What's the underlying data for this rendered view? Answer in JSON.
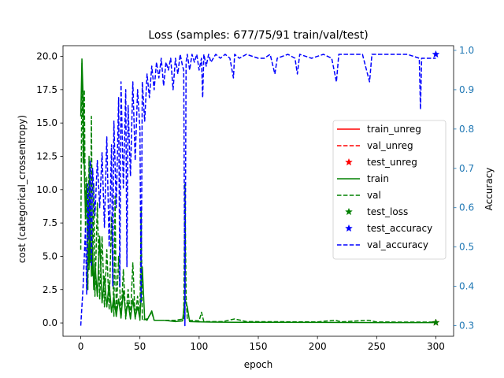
{
  "chart_data": {
    "type": "line",
    "title": "Loss (samples: 677/75/91 train/val/test)",
    "xlabel": "epoch",
    "ylabel": "cost (categorical_crossentropy)",
    "y2label": "Accuracy",
    "xlim": [
      -15,
      315
    ],
    "ylim": [
      -1.0,
      20.8
    ],
    "y2lim": [
      0.273,
      1.012
    ],
    "x_ticks": [
      0,
      50,
      100,
      150,
      200,
      250,
      300
    ],
    "y_ticks": [
      0.0,
      2.5,
      5.0,
      7.5,
      10.0,
      12.5,
      15.0,
      17.5,
      20.0
    ],
    "y2_ticks": [
      0.3,
      0.4,
      0.5,
      0.6,
      0.7,
      0.8,
      0.9,
      1.0
    ],
    "grid": false,
    "legend_position": "center-right",
    "colors": {
      "red": "#ff0000",
      "green": "#008000",
      "blue": "#0000ff",
      "right_axis": "#1f77b4"
    },
    "legend": [
      {
        "label": "train_unreg",
        "color": "#ff0000",
        "style": "solid"
      },
      {
        "label": "val_unreg",
        "color": "#ff0000",
        "style": "dashed"
      },
      {
        "label": "test_unreg",
        "color": "#ff0000",
        "style": "star"
      },
      {
        "label": "train",
        "color": "#008000",
        "style": "solid"
      },
      {
        "label": "val",
        "color": "#008000",
        "style": "dashed"
      },
      {
        "label": "test_loss",
        "color": "#008000",
        "style": "star"
      },
      {
        "label": "test_accuracy",
        "color": "#0000ff",
        "style": "star"
      },
      {
        "label": "val_accuracy",
        "color": "#0000ff",
        "style": "dashed"
      }
    ],
    "series": [
      {
        "name": "train",
        "axis": "left",
        "color": "#008000",
        "style": "solid",
        "points": [
          [
            0,
            15.5
          ],
          [
            1,
            19.8
          ],
          [
            2,
            17.0
          ],
          [
            3,
            11.5
          ],
          [
            4,
            8.0
          ],
          [
            5,
            10.5
          ],
          [
            6,
            6.5
          ],
          [
            7,
            4.0
          ],
          [
            8,
            8.5
          ],
          [
            9,
            3.5
          ],
          [
            10,
            5.5
          ],
          [
            11,
            2.5
          ],
          [
            12,
            4.5
          ],
          [
            14,
            2.0
          ],
          [
            16,
            6.5
          ],
          [
            18,
            1.5
          ],
          [
            20,
            3.5
          ],
          [
            22,
            1.2
          ],
          [
            24,
            3.0
          ],
          [
            26,
            0.8
          ],
          [
            28,
            2.0
          ],
          [
            30,
            0.5
          ],
          [
            32,
            1.8
          ],
          [
            34,
            0.4
          ],
          [
            36,
            2.4
          ],
          [
            38,
            0.6
          ],
          [
            40,
            1.5
          ],
          [
            42,
            0.3
          ],
          [
            44,
            1.8
          ],
          [
            46,
            0.4
          ],
          [
            48,
            1.2
          ],
          [
            50,
            0.3
          ],
          [
            52,
            4.2
          ],
          [
            54,
            0.3
          ],
          [
            56,
            0.2
          ],
          [
            60,
            0.9
          ],
          [
            62,
            0.2
          ],
          [
            66,
            0.2
          ],
          [
            70,
            0.2
          ],
          [
            80,
            0.1
          ],
          [
            86,
            0.15
          ],
          [
            88,
            1.8
          ],
          [
            90,
            1.2
          ],
          [
            92,
            0.1
          ],
          [
            100,
            0.08
          ],
          [
            110,
            0.06
          ],
          [
            130,
            0.05
          ],
          [
            150,
            0.05
          ],
          [
            200,
            0.04
          ],
          [
            250,
            0.03
          ],
          [
            300,
            0.03
          ]
        ]
      },
      {
        "name": "val",
        "axis": "left",
        "color": "#008000",
        "style": "dashed",
        "points": [
          [
            0,
            5.5
          ],
          [
            1,
            19.5
          ],
          [
            2,
            12.0
          ],
          [
            3,
            17.5
          ],
          [
            4,
            7.0
          ],
          [
            5,
            11.0
          ],
          [
            6,
            2.5
          ],
          [
            7,
            12.5
          ],
          [
            8,
            4.5
          ],
          [
            9,
            15.5
          ],
          [
            10,
            3.5
          ],
          [
            11,
            10.5
          ],
          [
            12,
            2.0
          ],
          [
            14,
            9.0
          ],
          [
            16,
            1.8
          ],
          [
            18,
            6.5
          ],
          [
            20,
            1.2
          ],
          [
            22,
            5.5
          ],
          [
            24,
            1.0
          ],
          [
            26,
            8.0
          ],
          [
            28,
            0.5
          ],
          [
            29,
            9.5
          ],
          [
            30,
            0.4
          ],
          [
            32,
            5.0
          ],
          [
            34,
            0.3
          ],
          [
            36,
            4.0
          ],
          [
            38,
            0.3
          ],
          [
            40,
            2.5
          ],
          [
            42,
            0.4
          ],
          [
            44,
            4.5
          ],
          [
            46,
            0.3
          ],
          [
            48,
            2.0
          ],
          [
            50,
            0.2
          ],
          [
            51,
            8.5
          ],
          [
            52,
            0.2
          ],
          [
            56,
            0.3
          ],
          [
            60,
            0.8
          ],
          [
            62,
            0.2
          ],
          [
            70,
            0.2
          ],
          [
            80,
            0.2
          ],
          [
            87,
            0.3
          ],
          [
            88,
            10.5
          ],
          [
            89,
            2.0
          ],
          [
            90,
            0.3
          ],
          [
            92,
            0.2
          ],
          [
            100,
            0.15
          ],
          [
            102,
            0.8
          ],
          [
            104,
            0.1
          ],
          [
            120,
            0.1
          ],
          [
            130,
            0.3
          ],
          [
            140,
            0.1
          ],
          [
            200,
            0.08
          ],
          [
            215,
            0.2
          ],
          [
            220,
            0.08
          ],
          [
            243,
            0.2
          ],
          [
            250,
            0.07
          ],
          [
            300,
            0.06
          ]
        ]
      },
      {
        "name": "val_accuracy",
        "axis": "right",
        "color": "#0000ff",
        "style": "dashed",
        "points": [
          [
            0,
            0.3
          ],
          [
            2,
            0.4
          ],
          [
            4,
            0.55
          ],
          [
            5,
            0.38
          ],
          [
            6,
            0.66
          ],
          [
            7,
            0.52
          ],
          [
            8,
            0.72
          ],
          [
            9,
            0.45
          ],
          [
            10,
            0.7
          ],
          [
            12,
            0.58
          ],
          [
            14,
            0.72
          ],
          [
            16,
            0.6
          ],
          [
            18,
            0.74
          ],
          [
            20,
            0.55
          ],
          [
            22,
            0.78
          ],
          [
            24,
            0.5
          ],
          [
            26,
            0.76
          ],
          [
            27,
            0.4
          ],
          [
            28,
            0.82
          ],
          [
            30,
            0.6
          ],
          [
            32,
            0.88
          ],
          [
            33,
            0.4
          ],
          [
            34,
            0.92
          ],
          [
            36,
            0.65
          ],
          [
            38,
            0.9
          ],
          [
            39,
            0.45
          ],
          [
            40,
            0.86
          ],
          [
            42,
            0.68
          ],
          [
            44,
            0.92
          ],
          [
            46,
            0.72
          ],
          [
            48,
            0.9
          ],
          [
            50,
            0.8
          ],
          [
            51,
            0.36
          ],
          [
            52,
            0.92
          ],
          [
            54,
            0.82
          ],
          [
            56,
            0.94
          ],
          [
            58,
            0.88
          ],
          [
            60,
            0.96
          ],
          [
            62,
            0.9
          ],
          [
            64,
            0.97
          ],
          [
            66,
            0.93
          ],
          [
            68,
            0.98
          ],
          [
            70,
            0.91
          ],
          [
            72,
            0.97
          ],
          [
            74,
            0.95
          ],
          [
            76,
            0.98
          ],
          [
            78,
            0.9
          ],
          [
            80,
            0.98
          ],
          [
            82,
            0.94
          ],
          [
            84,
            0.99
          ],
          [
            86,
            0.96
          ],
          [
            87,
            0.95
          ],
          [
            88,
            0.3
          ],
          [
            89,
            0.97
          ],
          [
            90,
            0.99
          ],
          [
            92,
            0.95
          ],
          [
            94,
            0.99
          ],
          [
            96,
            0.97
          ],
          [
            98,
            0.99
          ],
          [
            100,
            0.95
          ],
          [
            102,
            0.98
          ],
          [
            103,
            0.88
          ],
          [
            104,
            0.99
          ],
          [
            106,
            0.96
          ],
          [
            108,
            0.99
          ],
          [
            110,
            0.97
          ],
          [
            114,
            0.99
          ],
          [
            118,
            0.98
          ],
          [
            122,
            0.99
          ],
          [
            126,
            0.98
          ],
          [
            129,
            0.93
          ],
          [
            130,
            0.99
          ],
          [
            134,
            0.98
          ],
          [
            140,
            0.99
          ],
          [
            150,
            0.98
          ],
          [
            155,
            0.98
          ],
          [
            160,
            0.99
          ],
          [
            164,
            0.94
          ],
          [
            166,
            0.98
          ],
          [
            175,
            0.99
          ],
          [
            181,
            0.98
          ],
          [
            183,
            0.94
          ],
          [
            185,
            0.99
          ],
          [
            195,
            0.98
          ],
          [
            205,
            0.99
          ],
          [
            212,
            0.98
          ],
          [
            216,
            0.92
          ],
          [
            218,
            0.99
          ],
          [
            228,
            0.99
          ],
          [
            238,
            0.99
          ],
          [
            244,
            0.92
          ],
          [
            246,
            0.99
          ],
          [
            256,
            0.99
          ],
          [
            266,
            0.99
          ],
          [
            276,
            0.99
          ],
          [
            286,
            0.98
          ],
          [
            287,
            0.85
          ],
          [
            288,
            0.98
          ],
          [
            295,
            0.98
          ],
          [
            300,
            0.98
          ]
        ]
      }
    ],
    "markers": [
      {
        "name": "test_unreg",
        "axis": "left",
        "color": "#ff0000",
        "x": 300,
        "y": 0.03
      },
      {
        "name": "test_loss",
        "axis": "left",
        "color": "#008000",
        "x": 300,
        "y": 0.03
      },
      {
        "name": "test_accuracy",
        "axis": "right",
        "color": "#0000ff",
        "x": 300,
        "y": 0.99
      }
    ]
  }
}
